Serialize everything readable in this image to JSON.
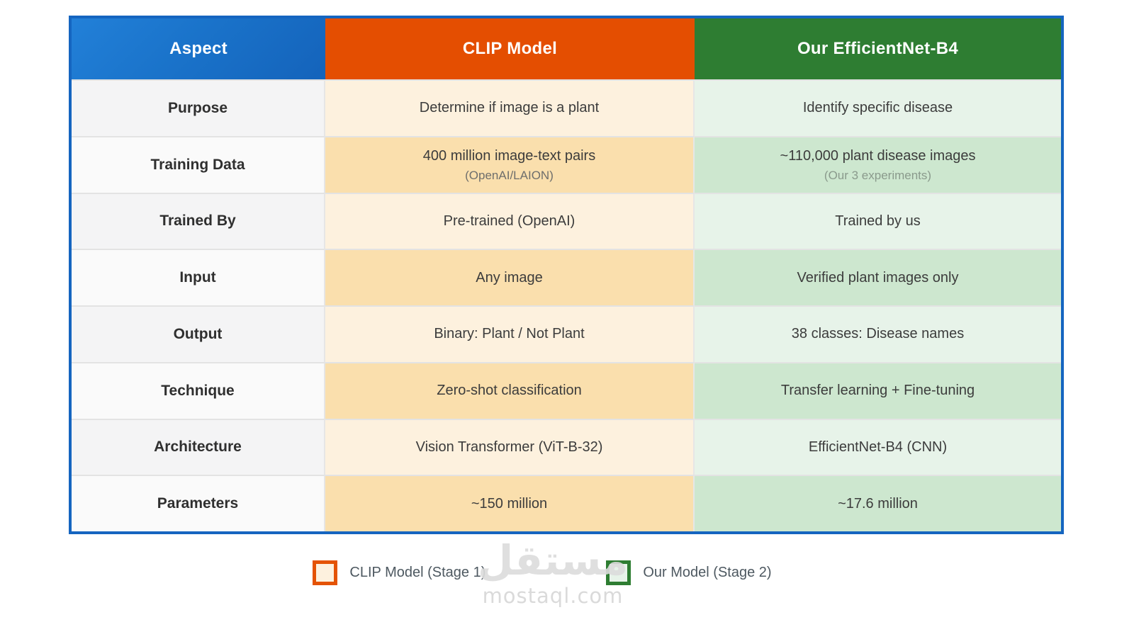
{
  "table": {
    "border_color": "#1565c0",
    "header": {
      "columns": [
        {
          "label": "Aspect",
          "bg": "#1a73ca",
          "text_color": "#ffffff"
        },
        {
          "label": "CLIP Model",
          "bg": "#e44e01",
          "text_color": "#ffffff"
        },
        {
          "label": "Our EfficientNet-B4",
          "bg": "#2e7d32",
          "text_color": "#ffffff"
        }
      ]
    },
    "rows": [
      {
        "aspect": "Purpose",
        "clip": "Determine if image is a plant",
        "ours": "Identify specific disease"
      },
      {
        "aspect": "Training Data",
        "clip": "400 million image-text pairs",
        "clip_sub": "(OpenAI/LAION)",
        "ours": "~110,000 plant disease images",
        "ours_sub": "(Our 3 experiments)"
      },
      {
        "aspect": "Trained By",
        "clip": "Pre-trained (OpenAI)",
        "ours": "Trained by us"
      },
      {
        "aspect": "Input",
        "clip": "Any image",
        "ours": "Verified plant images only"
      },
      {
        "aspect": "Output",
        "clip": "Binary: Plant / Not Plant",
        "ours": "38 classes: Disease names"
      },
      {
        "aspect": "Technique",
        "clip": "Zero-shot classification",
        "ours": "Transfer learning + Fine-tuning"
      },
      {
        "aspect": "Architecture",
        "clip": "Vision Transformer (ViT-B-32)",
        "ours": "EfficientNet-B4 (CNN)"
      },
      {
        "aspect": "Parameters",
        "clip": "~150 million",
        "ours": "~17.6 million"
      }
    ],
    "row_colors": {
      "aspect_light": "#f4f4f5",
      "aspect_dark": "#fafafa",
      "clip_light": "#fdf1de",
      "clip_dark": "#fadfad",
      "ours_light": "#e7f3e9",
      "ours_dark": "#cde7cf"
    }
  },
  "legend": {
    "items": [
      {
        "label": "CLIP Model (Stage 1)",
        "swatch_border": "#e45304",
        "swatch_fill": "#fdf1de"
      },
      {
        "label": "Our Model (Stage 2)",
        "swatch_border": "#2e7d32",
        "swatch_fill": "#e7f3e9"
      }
    ]
  },
  "watermark": {
    "logo": "مستقل",
    "text": "mostaql.com"
  },
  "chart_data": {
    "type": "table",
    "columns": [
      "Aspect",
      "CLIP Model",
      "Our EfficientNet-B4"
    ],
    "rows": [
      [
        "Purpose",
        "Determine if image is a plant",
        "Identify specific disease"
      ],
      [
        "Training Data",
        "400 million image-text pairs (OpenAI/LAION)",
        "~110,000 plant disease images (Our 3 experiments)"
      ],
      [
        "Trained By",
        "Pre-trained (OpenAI)",
        "Trained by us"
      ],
      [
        "Input",
        "Any image",
        "Verified plant images only"
      ],
      [
        "Output",
        "Binary: Plant / Not Plant",
        "38 classes: Disease names"
      ],
      [
        "Technique",
        "Zero-shot classification",
        "Transfer learning + Fine-tuning"
      ],
      [
        "Architecture",
        "Vision Transformer (ViT-B-32)",
        "EfficientNet-B4 (CNN)"
      ],
      [
        "Parameters",
        "~150 million",
        "~17.6 million"
      ]
    ],
    "legend_entries": [
      "CLIP Model (Stage 1)",
      "Our Model (Stage 2)"
    ],
    "legend_position": "bottom-center"
  }
}
